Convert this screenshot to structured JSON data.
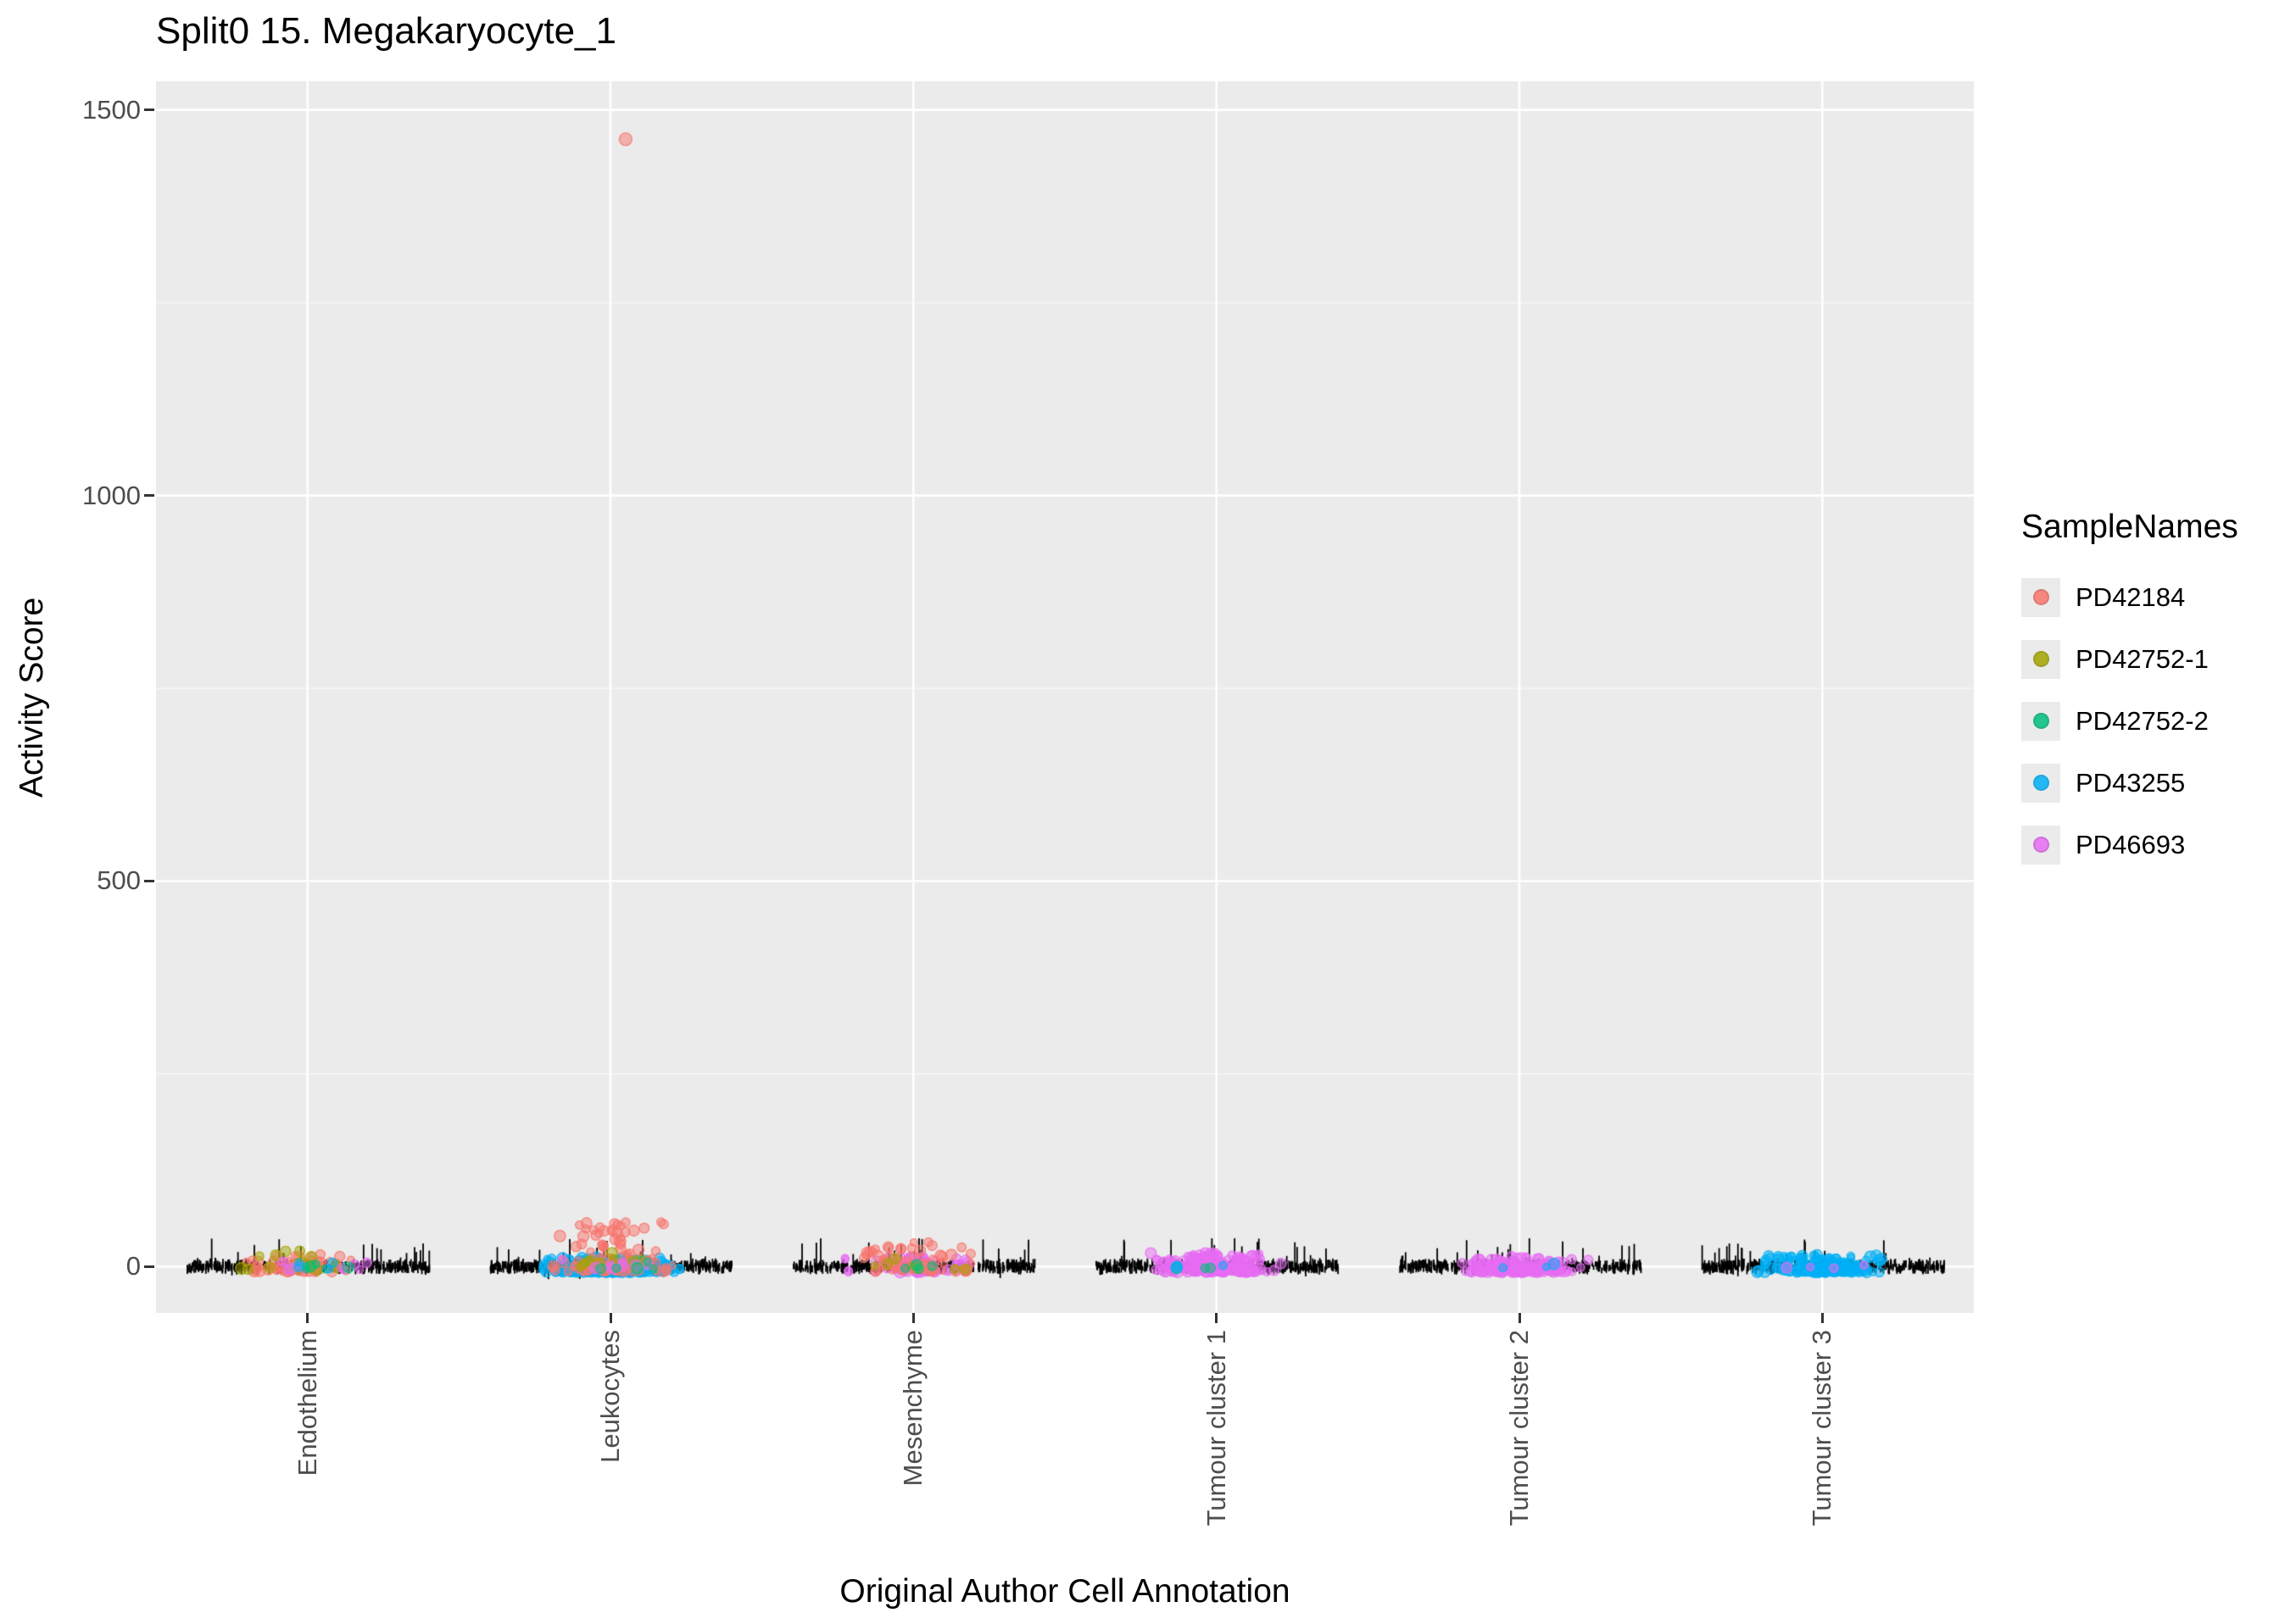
{
  "chart_data": {
    "type": "scatter",
    "title": "Split0 15. Megakaryocyte_1",
    "xlabel": "Original Author Cell Annotation",
    "ylabel": "Activity Score",
    "categories": [
      "Endothelium",
      "Leukocytes",
      "Mesenchyme",
      "Tumour cluster 1",
      "Tumour cluster 2",
      "Tumour cluster 3"
    ],
    "yticks": [
      0,
      500,
      1000,
      1500
    ],
    "ytick_labels": [
      "0",
      "500",
      "1000",
      "1500"
    ],
    "yticks_minor": [
      250,
      750,
      1250
    ],
    "ylim": [
      -60,
      1537
    ],
    "grid": true,
    "panel_bg": "#EBEBEB",
    "grid_color": "#FFFFFF",
    "tick_color": "#333333",
    "axis_text_color": "#4D4D4D",
    "legend": {
      "title": "SampleNames",
      "position": "right"
    },
    "series": [
      {
        "name": "PD42184",
        "color": "#F8766D"
      },
      {
        "name": "PD42752-1",
        "color": "#A3A500"
      },
      {
        "name": "PD42752-2",
        "color": "#00BF7D"
      },
      {
        "name": "PD43255",
        "color": "#00B0F6"
      },
      {
        "name": "PD46693",
        "color": "#E76BF3"
      }
    ],
    "clusters": [
      {
        "cat": 0,
        "sample": "PD42184",
        "n": 55,
        "ymin": -6,
        "ymax": 16,
        "hw": 0.21,
        "dx": -0.01
      },
      {
        "cat": 0,
        "sample": "PD42752-1",
        "n": 20,
        "ymin": -4,
        "ymax": 24,
        "hw": 0.2,
        "dx": -0.03
      },
      {
        "cat": 0,
        "sample": "PD42752-2",
        "n": 6,
        "ymin": -3,
        "ymax": 9,
        "hw": 0.18,
        "dx": 0.0
      },
      {
        "cat": 0,
        "sample": "PD46693",
        "n": 10,
        "ymin": -4,
        "ymax": 9,
        "hw": 0.2,
        "dx": 0.02
      },
      {
        "cat": 0,
        "sample": "PD43255",
        "n": 4,
        "ymin": -3,
        "ymax": 7,
        "hw": 0.15,
        "dx": 0.0
      },
      {
        "cat": 1,
        "sample": "PD42184",
        "n": 90,
        "ymin": -6,
        "ymax": 58,
        "hw": 0.22,
        "dx": 0.0
      },
      {
        "cat": 1,
        "sample": "PD42752-1",
        "n": 10,
        "ymin": -3,
        "ymax": 22,
        "hw": 0.2,
        "dx": -0.02
      },
      {
        "cat": 1,
        "sample": "PD42752-2",
        "n": 5,
        "ymin": -3,
        "ymax": 10,
        "hw": 0.18,
        "dx": 0.01
      },
      {
        "cat": 1,
        "sample": "PD43255",
        "n": 230,
        "ymin": -7,
        "ymax": 12,
        "hw": 0.24,
        "dx": 0.0
      },
      {
        "cat": 1,
        "sample": "PD46693",
        "n": 8,
        "ymin": -4,
        "ymax": 10,
        "hw": 0.2,
        "dx": 0.02
      },
      {
        "cat": 2,
        "sample": "PD42184",
        "n": 55,
        "ymin": -6,
        "ymax": 32,
        "hw": 0.22,
        "dx": 0.01
      },
      {
        "cat": 2,
        "sample": "PD46693",
        "n": 70,
        "ymin": -7,
        "ymax": 12,
        "hw": 0.23,
        "dx": -0.01
      },
      {
        "cat": 2,
        "sample": "PD42752-1",
        "n": 8,
        "ymin": -3,
        "ymax": 12,
        "hw": 0.2,
        "dx": 0.0
      },
      {
        "cat": 2,
        "sample": "PD42752-2",
        "n": 4,
        "ymin": -3,
        "ymax": 8,
        "hw": 0.18,
        "dx": 0.0
      },
      {
        "cat": 3,
        "sample": "PD46693",
        "n": 170,
        "ymin": -7,
        "ymax": 18,
        "hw": 0.23,
        "dx": 0.0
      },
      {
        "cat": 3,
        "sample": "PD42752-2",
        "n": 3,
        "ymin": -2,
        "ymax": 8,
        "hw": 0.15,
        "dx": -0.05
      },
      {
        "cat": 3,
        "sample": "PD43255",
        "n": 3,
        "ymin": -2,
        "ymax": 8,
        "hw": 0.18,
        "dx": -0.03
      },
      {
        "cat": 4,
        "sample": "PD46693",
        "n": 130,
        "ymin": -7,
        "ymax": 13,
        "hw": 0.23,
        "dx": 0.0
      },
      {
        "cat": 4,
        "sample": "PD43255",
        "n": 3,
        "ymin": -2,
        "ymax": 6,
        "hw": 0.15,
        "dx": 0.03
      },
      {
        "cat": 5,
        "sample": "PD43255",
        "n": 165,
        "ymin": -7,
        "ymax": 15,
        "hw": 0.23,
        "dx": 0.0
      },
      {
        "cat": 5,
        "sample": "PD46693",
        "n": 4,
        "ymin": -2,
        "ymax": 8,
        "hw": 0.18,
        "dx": 0.02
      }
    ],
    "outliers": [
      {
        "cat": 1,
        "sample": "PD42184",
        "y": 1462,
        "dx": 0.05
      }
    ],
    "rug": {
      "color": "#000000",
      "halfwidth": 0.4,
      "dash_count": 430,
      "spike_count": 26
    }
  }
}
